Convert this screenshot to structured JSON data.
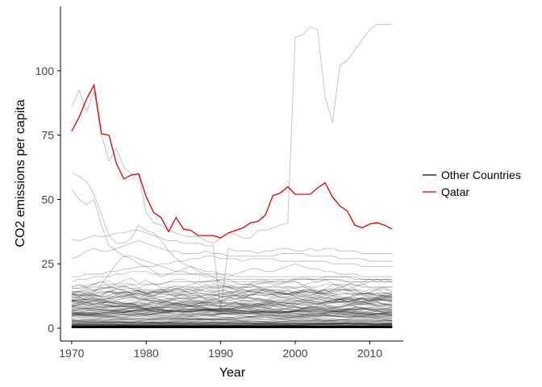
{
  "chart_data": {
    "type": "line",
    "title": "",
    "xlabel": "Year",
    "ylabel": "CO2 emissions per capita",
    "xlim": [
      1968.5,
      2014.5
    ],
    "ylim": [
      -5,
      125
    ],
    "x_ticks": [
      1970,
      1980,
      1990,
      2000,
      2010
    ],
    "y_ticks": [
      0,
      25,
      50,
      75,
      100
    ],
    "grid": false,
    "legend": {
      "placement": "right",
      "entries": [
        {
          "label": "Other Countries",
          "color": "#000000"
        },
        {
          "label": "Qatar",
          "color": "#e00000"
        }
      ]
    },
    "background_series_color": "#000000",
    "background_series_opacity": 0.25,
    "x": [
      1970,
      1971,
      1972,
      1973,
      1974,
      1975,
      1976,
      1977,
      1978,
      1979,
      1980,
      1981,
      1982,
      1983,
      1984,
      1985,
      1986,
      1987,
      1988,
      1989,
      1990,
      1991,
      1992,
      1993,
      1994,
      1995,
      1996,
      1997,
      1998,
      1999,
      2000,
      2001,
      2002,
      2003,
      2004,
      2005,
      2006,
      2007,
      2008,
      2009,
      2010,
      2011,
      2012,
      2013
    ],
    "highlight_series": {
      "name": "Qatar",
      "color": "#e00000",
      "values": [
        76.5,
        82,
        89,
        94.5,
        75.5,
        75,
        64,
        58,
        59.5,
        60,
        51,
        45,
        43,
        37.5,
        43,
        38.5,
        38,
        36,
        36,
        36,
        35,
        37,
        38,
        39,
        41,
        41.5,
        44,
        51.5,
        52.5,
        55,
        52,
        52,
        52,
        54.5,
        56.5,
        51,
        47.5,
        45.5,
        40,
        39,
        40.5,
        41,
        40,
        38.5
      ]
    },
    "other_series": [
      [
        86,
        92.5,
        84,
        92,
        75,
        65,
        70,
        62.5,
        60,
        59.5,
        45,
        41,
        40,
        38,
        37,
        36,
        35.5,
        35.5,
        34,
        33,
        35,
        37,
        36.5,
        35,
        35,
        38,
        38,
        39,
        40,
        41,
        113,
        114,
        117,
        116,
        90,
        80,
        102,
        104,
        108,
        112,
        116,
        118,
        118,
        118
      ],
      [
        60.5,
        59,
        57,
        52,
        44,
        36,
        33,
        33,
        35,
        40,
        38,
        37,
        34,
        30,
        27,
        25,
        24,
        22,
        21,
        20,
        18,
        17,
        16,
        15,
        14,
        14,
        13,
        13,
        13,
        13,
        14,
        14,
        14,
        14,
        15,
        15,
        15,
        15,
        15,
        14,
        15,
        15,
        15,
        15
      ],
      [
        54,
        50,
        48,
        50,
        40,
        32,
        30,
        28,
        28,
        27,
        26,
        25,
        24,
        23,
        22,
        22,
        21,
        21,
        20,
        20,
        20,
        19,
        19,
        19,
        19,
        19,
        19,
        19,
        19,
        19,
        19,
        19,
        19,
        19,
        20,
        20,
        20,
        20,
        20,
        19,
        19,
        19,
        19,
        19
      ],
      [
        34.5,
        34,
        35,
        36,
        35.5,
        36,
        37,
        37,
        38,
        38,
        37,
        36,
        35,
        34,
        34,
        33,
        33,
        33,
        32,
        32,
        7,
        31,
        30,
        30,
        30,
        29,
        30,
        30,
        31,
        31,
        30,
        30,
        31,
        30,
        31,
        31,
        30,
        30,
        30,
        29,
        29,
        29,
        29,
        29
      ],
      [
        27,
        28,
        30,
        31,
        30,
        30,
        31,
        32,
        33,
        34,
        33,
        32,
        31,
        30,
        30,
        29,
        29,
        29,
        30,
        29,
        29,
        28,
        28,
        28,
        28,
        28,
        28,
        28,
        29,
        29,
        29,
        29,
        28,
        28,
        28,
        28,
        27,
        27,
        27,
        27,
        26,
        26,
        26,
        26
      ],
      [
        20,
        20,
        21,
        21,
        21,
        22,
        22,
        23,
        23,
        24,
        24,
        24,
        25,
        25,
        26,
        26,
        27,
        27,
        28,
        28,
        27,
        27,
        27,
        26,
        27,
        27,
        27,
        27,
        26,
        26,
        26,
        26,
        26,
        26,
        26,
        25,
        25,
        25,
        25,
        24,
        24,
        24,
        24,
        24
      ],
      [
        8,
        10,
        12,
        14,
        17,
        21,
        25,
        28,
        27,
        25,
        24,
        22,
        20,
        21,
        22,
        23,
        24,
        23,
        22,
        22,
        21,
        20,
        21,
        22,
        23,
        23,
        22,
        22,
        23,
        24,
        25,
        24,
        23,
        23,
        22,
        22,
        21,
        21,
        21,
        20,
        20,
        20,
        20,
        20
      ],
      [
        18,
        19,
        19,
        20,
        20,
        20,
        21,
        21,
        22,
        22,
        22,
        21,
        21,
        21,
        21,
        21,
        21,
        21,
        21,
        21,
        21,
        21,
        20,
        20,
        20,
        20,
        20,
        20,
        20,
        20,
        20,
        20,
        20,
        20,
        20,
        20,
        20,
        20,
        19,
        19,
        19,
        19,
        19,
        19
      ],
      [
        14,
        14,
        15,
        15,
        15,
        16,
        16,
        16,
        17,
        17,
        17,
        17,
        17,
        18,
        18,
        18,
        18,
        18,
        18,
        18,
        19,
        18,
        18,
        18,
        18,
        18,
        18,
        18,
        18,
        18,
        19,
        19,
        19,
        19,
        19,
        19,
        19,
        18,
        18,
        18,
        18,
        18,
        18,
        18
      ],
      [
        12,
        12,
        13,
        13,
        14,
        14,
        14,
        14,
        14,
        15,
        15,
        15,
        15,
        15,
        15,
        15,
        16,
        16,
        16,
        16,
        16,
        16,
        16,
        16,
        16,
        16,
        16,
        16,
        16,
        16,
        16,
        16,
        16,
        16,
        17,
        17,
        17,
        17,
        17,
        16,
        16,
        16,
        16,
        16
      ]
    ],
    "band_series_count": 130,
    "band_top_range": [
      0.3,
      15
    ]
  }
}
